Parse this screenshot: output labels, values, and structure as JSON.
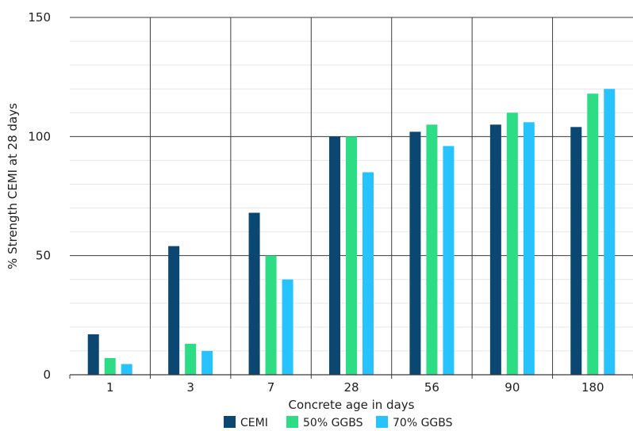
{
  "chart_data": {
    "type": "bar",
    "title": "",
    "xlabel": "Concrete age in days",
    "ylabel": "% Strength CEMI at 28 days",
    "categories": [
      "1",
      "3",
      "7",
      "28",
      "56",
      "90",
      "180"
    ],
    "ylim": [
      0,
      150
    ],
    "yticks": [
      0,
      50,
      100,
      150
    ],
    "grid": true,
    "legend_position": "bottom",
    "series": [
      {
        "name": "CEMI",
        "color": "#0b4770",
        "values": [
          17,
          54,
          68,
          100,
          102,
          105,
          104
        ]
      },
      {
        "name": "50% GGBS",
        "color": "#2ddd86",
        "values": [
          7,
          13,
          50,
          100,
          105,
          110,
          118
        ]
      },
      {
        "name": "70% GGBS",
        "color": "#27c3ff",
        "values": [
          4.5,
          10,
          40,
          85,
          96,
          106,
          120
        ]
      }
    ]
  }
}
